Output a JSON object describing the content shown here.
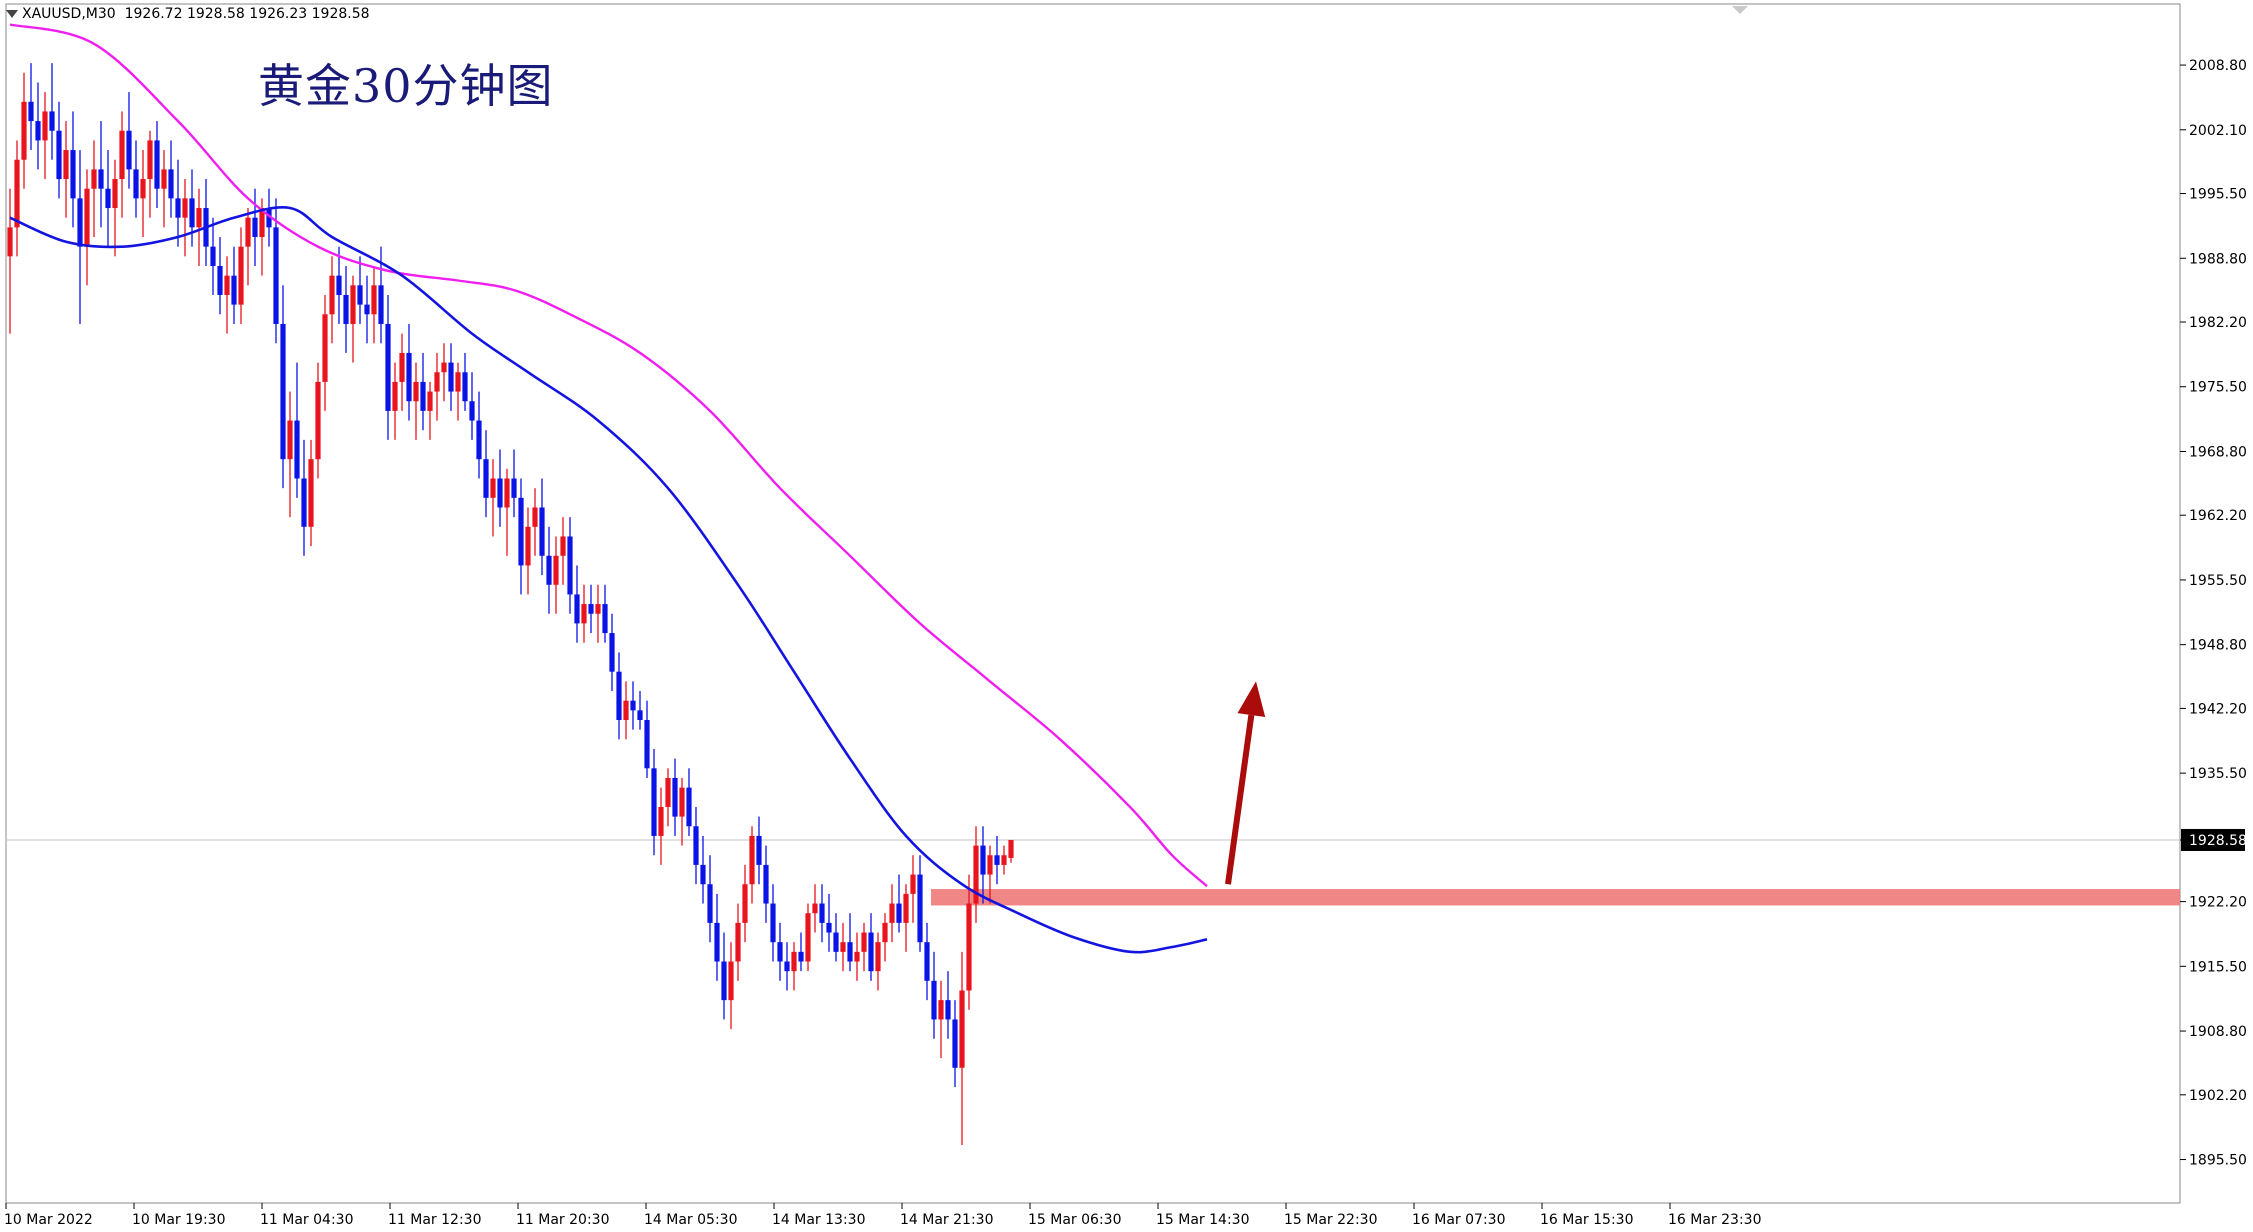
{
  "header": {
    "symbol": "XAUUSD,M30",
    "ohlc": "1926.72 1928.58 1926.23 1928.58"
  },
  "chart_data": {
    "type": "candlestick",
    "title": "黄金30分钟图",
    "ylim": [
      1891.0,
      2014.5
    ],
    "y_ticks": [
      "2008.80",
      "2002.10",
      "1995.50",
      "1988.80",
      "1982.20",
      "1975.50",
      "1968.80",
      "1962.20",
      "1955.50",
      "1948.80",
      "1942.20",
      "1935.50",
      "1928.58",
      "1922.20",
      "1915.50",
      "1908.80",
      "1902.20",
      "1895.50"
    ],
    "x_ticks": [
      "10 Mar 2022",
      "10 Mar 19:30",
      "11 Mar 04:30",
      "11 Mar 12:30",
      "11 Mar 20:30",
      "14 Mar 05:30",
      "14 Mar 13:30",
      "14 Mar 21:30",
      "15 Mar 06:30",
      "15 Mar 14:30",
      "15 Mar 22:30",
      "16 Mar 07:30",
      "16 Mar 15:30",
      "16 Mar 23:30"
    ],
    "current_price": "1928.58",
    "candles": [
      [
        1989,
        1996,
        1981,
        1992
      ],
      [
        1992,
        2001,
        1989,
        1999
      ],
      [
        1999,
        2008,
        1996,
        2005
      ],
      [
        2005,
        2009,
        2000,
        2003
      ],
      [
        2003,
        2007,
        1998,
        2001
      ],
      [
        2001,
        2006,
        1997,
        2004
      ],
      [
        2004,
        2009,
        1999,
        2002
      ],
      [
        2002,
        2005,
        1995,
        1997
      ],
      [
        1997,
        2003,
        1993,
        2000
      ],
      [
        2000,
        2004,
        1992,
        1995
      ],
      [
        1995,
        2000,
        1982,
        1990
      ],
      [
        1990,
        1998,
        1986,
        1996
      ],
      [
        1996,
        2001,
        1991,
        1998
      ],
      [
        1998,
        2003,
        1992,
        1996
      ],
      [
        1996,
        2000,
        1990,
        1994
      ],
      [
        1994,
        1999,
        1989,
        1997
      ],
      [
        1997,
        2004,
        1993,
        2002
      ],
      [
        2002,
        2006,
        1996,
        1998
      ],
      [
        1998,
        2001,
        1993,
        1995
      ],
      [
        1995,
        2000,
        1991,
        1997
      ],
      [
        1997,
        2002,
        1993,
        2001
      ],
      [
        2001,
        2003,
        1994,
        1996
      ],
      [
        1996,
        2000,
        1992,
        1998
      ],
      [
        1998,
        2001,
        1993,
        1995
      ],
      [
        1995,
        1999,
        1990,
        1993
      ],
      [
        1993,
        1997,
        1989,
        1995
      ],
      [
        1995,
        1998,
        1990,
        1992
      ],
      [
        1992,
        1996,
        1988,
        1994
      ],
      [
        1994,
        1997,
        1988,
        1990
      ],
      [
        1990,
        1993,
        1985,
        1988
      ],
      [
        1988,
        1991,
        1983,
        1985
      ],
      [
        1985,
        1989,
        1981,
        1987
      ],
      [
        1987,
        1990,
        1982,
        1984
      ],
      [
        1984,
        1992,
        1982,
        1990
      ],
      [
        1990,
        1994,
        1986,
        1993
      ],
      [
        1993,
        1996,
        1988,
        1991
      ],
      [
        1991,
        1995,
        1987,
        1994
      ],
      [
        1994,
        1996,
        1990,
        1992
      ],
      [
        1992,
        1995,
        1980,
        1982
      ],
      [
        1982,
        1986,
        1965,
        1968
      ],
      [
        1968,
        1975,
        1962,
        1972
      ],
      [
        1972,
        1978,
        1964,
        1966
      ],
      [
        1966,
        1970,
        1958,
        1961
      ],
      [
        1961,
        1970,
        1959,
        1968
      ],
      [
        1968,
        1978,
        1966,
        1976
      ],
      [
        1976,
        1985,
        1973,
        1983
      ],
      [
        1983,
        1989,
        1980,
        1987
      ],
      [
        1987,
        1990,
        1982,
        1985
      ],
      [
        1985,
        1988,
        1979,
        1982
      ],
      [
        1982,
        1987,
        1978,
        1986
      ],
      [
        1986,
        1989,
        1982,
        1984
      ],
      [
        1984,
        1987,
        1980,
        1983
      ],
      [
        1983,
        1988,
        1980,
        1986
      ],
      [
        1986,
        1990,
        1980,
        1982
      ],
      [
        1982,
        1985,
        1970,
        1973
      ],
      [
        1973,
        1978,
        1970,
        1976
      ],
      [
        1976,
        1981,
        1973,
        1979
      ],
      [
        1979,
        1982,
        1972,
        1974
      ],
      [
        1974,
        1978,
        1970,
        1976
      ],
      [
        1976,
        1979,
        1971,
        1973
      ],
      [
        1973,
        1976,
        1970,
        1975
      ],
      [
        1975,
        1979,
        1972,
        1977
      ],
      [
        1977,
        1980,
        1974,
        1978
      ],
      [
        1978,
        1980,
        1973,
        1975
      ],
      [
        1975,
        1978,
        1972,
        1977
      ],
      [
        1977,
        1979,
        1973,
        1974
      ],
      [
        1974,
        1977,
        1970,
        1972
      ],
      [
        1972,
        1975,
        1966,
        1968
      ],
      [
        1968,
        1971,
        1962,
        1964
      ],
      [
        1964,
        1968,
        1960,
        1966
      ],
      [
        1966,
        1969,
        1961,
        1963
      ],
      [
        1963,
        1967,
        1958,
        1966
      ],
      [
        1966,
        1969,
        1962,
        1964
      ],
      [
        1964,
        1966,
        1954,
        1957
      ],
      [
        1957,
        1963,
        1954,
        1961
      ],
      [
        1961,
        1965,
        1958,
        1963
      ],
      [
        1963,
        1966,
        1956,
        1958
      ],
      [
        1958,
        1961,
        1952,
        1955
      ],
      [
        1955,
        1960,
        1952,
        1958
      ],
      [
        1958,
        1962,
        1955,
        1960
      ],
      [
        1960,
        1962,
        1952,
        1954
      ],
      [
        1954,
        1957,
        1949,
        1951
      ],
      [
        1951,
        1955,
        1949,
        1953
      ],
      [
        1953,
        1955,
        1950,
        1952
      ],
      [
        1952,
        1955,
        1949,
        1953
      ],
      [
        1953,
        1955,
        1949,
        1950
      ],
      [
        1950,
        1952,
        1944,
        1946
      ],
      [
        1946,
        1948,
        1939,
        1941
      ],
      [
        1941,
        1945,
        1939,
        1943
      ],
      [
        1943,
        1945,
        1940,
        1942
      ],
      [
        1942,
        1944,
        1940,
        1941
      ],
      [
        1941,
        1943,
        1935,
        1936
      ],
      [
        1936,
        1938,
        1927,
        1929
      ],
      [
        1929,
        1934,
        1926,
        1932
      ],
      [
        1932,
        1936,
        1930,
        1935
      ],
      [
        1935,
        1937,
        1929,
        1931
      ],
      [
        1931,
        1935,
        1928,
        1934
      ],
      [
        1934,
        1936,
        1929,
        1930
      ],
      [
        1930,
        1932,
        1924,
        1926
      ],
      [
        1926,
        1929,
        1922,
        1924
      ],
      [
        1924,
        1927,
        1918,
        1920
      ],
      [
        1920,
        1923,
        1914,
        1916
      ],
      [
        1916,
        1919,
        1910,
        1912
      ],
      [
        1912,
        1918,
        1909,
        1916
      ],
      [
        1916,
        1922,
        1914,
        1920
      ],
      [
        1920,
        1926,
        1918,
        1924
      ],
      [
        1924,
        1930,
        1922,
        1929
      ],
      [
        1929,
        1931,
        1924,
        1926
      ],
      [
        1926,
        1928,
        1920,
        1922
      ],
      [
        1922,
        1924,
        1916,
        1918
      ],
      [
        1918,
        1920,
        1914,
        1916
      ],
      [
        1916,
        1918,
        1913,
        1915
      ],
      [
        1915,
        1918,
        1913,
        1917
      ],
      [
        1917,
        1919,
        1915,
        1916
      ],
      [
        1916,
        1922,
        1915,
        1921
      ],
      [
        1921,
        1924,
        1919,
        1922
      ],
      [
        1922,
        1924,
        1918,
        1920
      ],
      [
        1920,
        1923,
        1917,
        1919
      ],
      [
        1919,
        1921,
        1916,
        1917
      ],
      [
        1917,
        1920,
        1915,
        1918
      ],
      [
        1918,
        1921,
        1915,
        1916
      ],
      [
        1916,
        1919,
        1914,
        1917
      ],
      [
        1917,
        1920,
        1915,
        1919
      ],
      [
        1919,
        1921,
        1914,
        1915
      ],
      [
        1915,
        1919,
        1913,
        1918
      ],
      [
        1918,
        1921,
        1916,
        1920
      ],
      [
        1920,
        1924,
        1918,
        1922
      ],
      [
        1922,
        1925,
        1919,
        1920
      ],
      [
        1920,
        1924,
        1917,
        1923
      ],
      [
        1923,
        1927,
        1920,
        1925
      ],
      [
        1925,
        1927,
        1917,
        1918
      ],
      [
        1918,
        1920,
        1912,
        1914
      ],
      [
        1914,
        1917,
        1908,
        1910
      ],
      [
        1910,
        1914,
        1906,
        1912
      ],
      [
        1912,
        1915,
        1908,
        1910
      ],
      [
        1910,
        1912,
        1903,
        1905
      ],
      [
        1905,
        1917,
        1897,
        1913
      ],
      [
        1913,
        1925,
        1911,
        1922
      ],
      [
        1922,
        1930,
        1920,
        1928
      ],
      [
        1928,
        1930,
        1922,
        1925
      ],
      [
        1925,
        1928,
        1922,
        1927
      ],
      [
        1927,
        1929,
        1924,
        1926
      ],
      [
        1926,
        1928,
        1925,
        1927
      ],
      [
        1926.72,
        1928.58,
        1926.23,
        1928.58
      ]
    ],
    "ma_fast": [
      [
        0,
        1993
      ],
      [
        8,
        1990.5
      ],
      [
        16,
        1990
      ],
      [
        24,
        1991
      ],
      [
        32,
        1993
      ],
      [
        40,
        1994
      ],
      [
        46,
        1991
      ],
      [
        56,
        1987
      ],
      [
        66,
        1981
      ],
      [
        74,
        1977
      ],
      [
        84,
        1972
      ],
      [
        94,
        1965
      ],
      [
        104,
        1955
      ],
      [
        112,
        1946
      ],
      [
        120,
        1937
      ],
      [
        128,
        1929
      ],
      [
        136,
        1924
      ],
      [
        144,
        1921
      ],
      [
        152,
        1918.5
      ],
      [
        160,
        1917
      ],
      [
        166,
        1917.5
      ],
      [
        171,
        1918.3
      ]
    ],
    "ma_slow": [
      [
        0,
        2013
      ],
      [
        12,
        2011
      ],
      [
        24,
        2003
      ],
      [
        34,
        1995
      ],
      [
        44,
        1990
      ],
      [
        54,
        1987.5
      ],
      [
        64,
        1986.5
      ],
      [
        72,
        1985.5
      ],
      [
        80,
        1983
      ],
      [
        90,
        1979
      ],
      [
        100,
        1973
      ],
      [
        110,
        1965
      ],
      [
        120,
        1958
      ],
      [
        130,
        1951
      ],
      [
        140,
        1945
      ],
      [
        150,
        1939
      ],
      [
        160,
        1932
      ],
      [
        166,
        1927
      ],
      [
        171,
        1923.8
      ]
    ],
    "support_zone": {
      "price_low": 1921.8,
      "price_high": 1923.5,
      "from_index": 132
    },
    "arrow": {
      "from": [
        174,
        1924
      ],
      "to": [
        178,
        1945
      ]
    },
    "colors": {
      "bull": "#e8141e",
      "bear": "#0a14e6",
      "ma_fast": "#1414e0",
      "ma_slow": "#f01ef0",
      "zone": "#f08080",
      "arrow": "#aa0c0c",
      "axis": "#8a8a8a",
      "price_line": "#cfcfcf"
    }
  }
}
